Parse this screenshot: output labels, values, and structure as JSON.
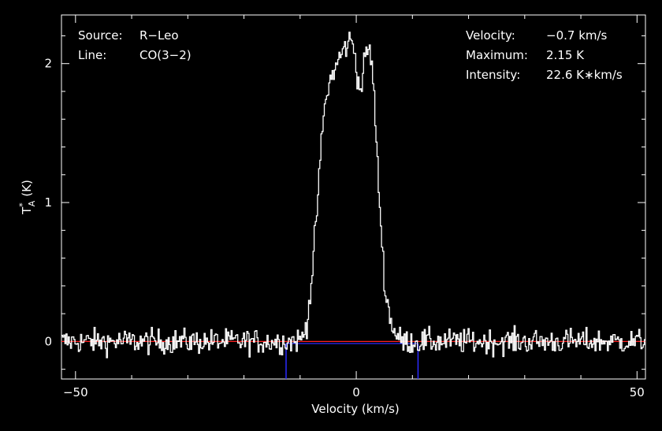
{
  "chart_data": {
    "type": "line",
    "xlabel": "Velocity (km/s)",
    "ylabel": "T",
    "ylabel_sub": "A",
    "ylabel_sup": "*",
    "ylabel_unit": "(K)",
    "xlim": [
      -52.5,
      51.5
    ],
    "ylim": [
      -0.27,
      2.35
    ],
    "x_ticks": [
      -50,
      0,
      50
    ],
    "x_tick_labels": [
      "−50",
      "0",
      "50"
    ],
    "y_ticks": [
      0,
      1,
      2
    ],
    "y_tick_labels": [
      "0",
      "1",
      "2"
    ],
    "grid": false,
    "line_style": "steps",
    "series": [
      {
        "color": "#ffffff",
        "x": [
          -50,
          -45,
          -40,
          -35,
          -30,
          -25,
          -20,
          -15,
          -12,
          -10,
          -9,
          -8,
          -7,
          -6,
          -5,
          -4,
          -3,
          -2,
          -1.2,
          -0.5,
          0,
          0.5,
          1,
          1.5,
          2,
          2.5,
          3,
          3.5,
          4,
          4.5,
          5,
          6,
          7,
          8,
          9,
          10,
          12,
          15,
          20,
          25,
          30,
          35,
          40,
          45,
          50
        ],
        "values": [
          0.0,
          0.0,
          0.0,
          0.0,
          0.0,
          0.0,
          0.0,
          0.0,
          0.0,
          0.01,
          0.1,
          0.45,
          1.0,
          1.6,
          1.85,
          1.95,
          2.05,
          2.12,
          2.17,
          2.13,
          1.95,
          1.8,
          1.88,
          2.05,
          2.12,
          2.05,
          1.85,
          1.4,
          1.05,
          0.7,
          0.4,
          0.15,
          0.05,
          0.0,
          0.0,
          0.0,
          0.0,
          0.0,
          0.0,
          0.0,
          0.0,
          0.0,
          0.0,
          0.0,
          0.0
        ],
        "noise_rms": 0.045
      }
    ],
    "baseline": {
      "value": 0.0,
      "color": "#ff2020"
    },
    "window_line": {
      "value": -0.015,
      "x_range": [
        -12.5,
        11
      ],
      "color": "#2b2bff"
    },
    "window_markers": {
      "x": [
        -12.5,
        11
      ],
      "color": "#2b2bff"
    }
  },
  "annotations": {
    "left": [
      {
        "label": "Source:",
        "value": "R−Leo"
      },
      {
        "label": "Line:",
        "value": "CO(3−2)"
      }
    ],
    "right": [
      {
        "label": "Velocity:",
        "value": "−0.7 km/s"
      },
      {
        "label": "Maximum:",
        "value": "2.15 K"
      },
      {
        "label": "Intensity:",
        "value": "22.6 K∗km/s"
      }
    ]
  }
}
